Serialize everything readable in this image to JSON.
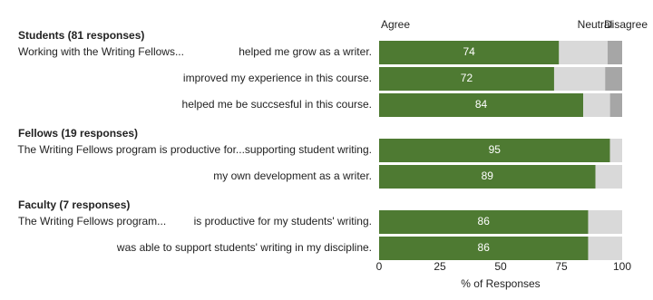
{
  "chart_data": {
    "type": "stacked-bar-horizontal",
    "xlabel": "% of Responses",
    "xlim": [
      0,
      100
    ],
    "xticks": [
      0,
      25,
      50,
      75,
      100
    ],
    "groups": [
      {
        "title": "Students (81 responses)",
        "prefix": "Working with the Writing Fellows...",
        "categories": [
          "helped me grow as a writer.",
          "improved my experience in this course.",
          "helped me be succsesful in this course."
        ]
      },
      {
        "title": "Fellows (19 responses)",
        "categories": [
          "The Writing Fellows program is productive for...supporting student writing.",
          "my own development as a writer."
        ]
      },
      {
        "title": "Faculty (7 responses)",
        "prefix": "The Writing Fellows program...",
        "categories": [
          "is productive for my students' writing.",
          "was able to support students' writing in my discipline."
        ]
      }
    ],
    "series": [
      {
        "name": "Agree",
        "color": "#4e7a32",
        "values": [
          74,
          72,
          84,
          95,
          89,
          86,
          86
        ]
      },
      {
        "name": "Neutral",
        "color": "#d9d9d9",
        "values": [
          20,
          21,
          11,
          5,
          11,
          14,
          14
        ]
      },
      {
        "name": "Disagree",
        "color": "#a6a6a6",
        "values": [
          6,
          7,
          5,
          0,
          0,
          0,
          0
        ]
      }
    ]
  }
}
